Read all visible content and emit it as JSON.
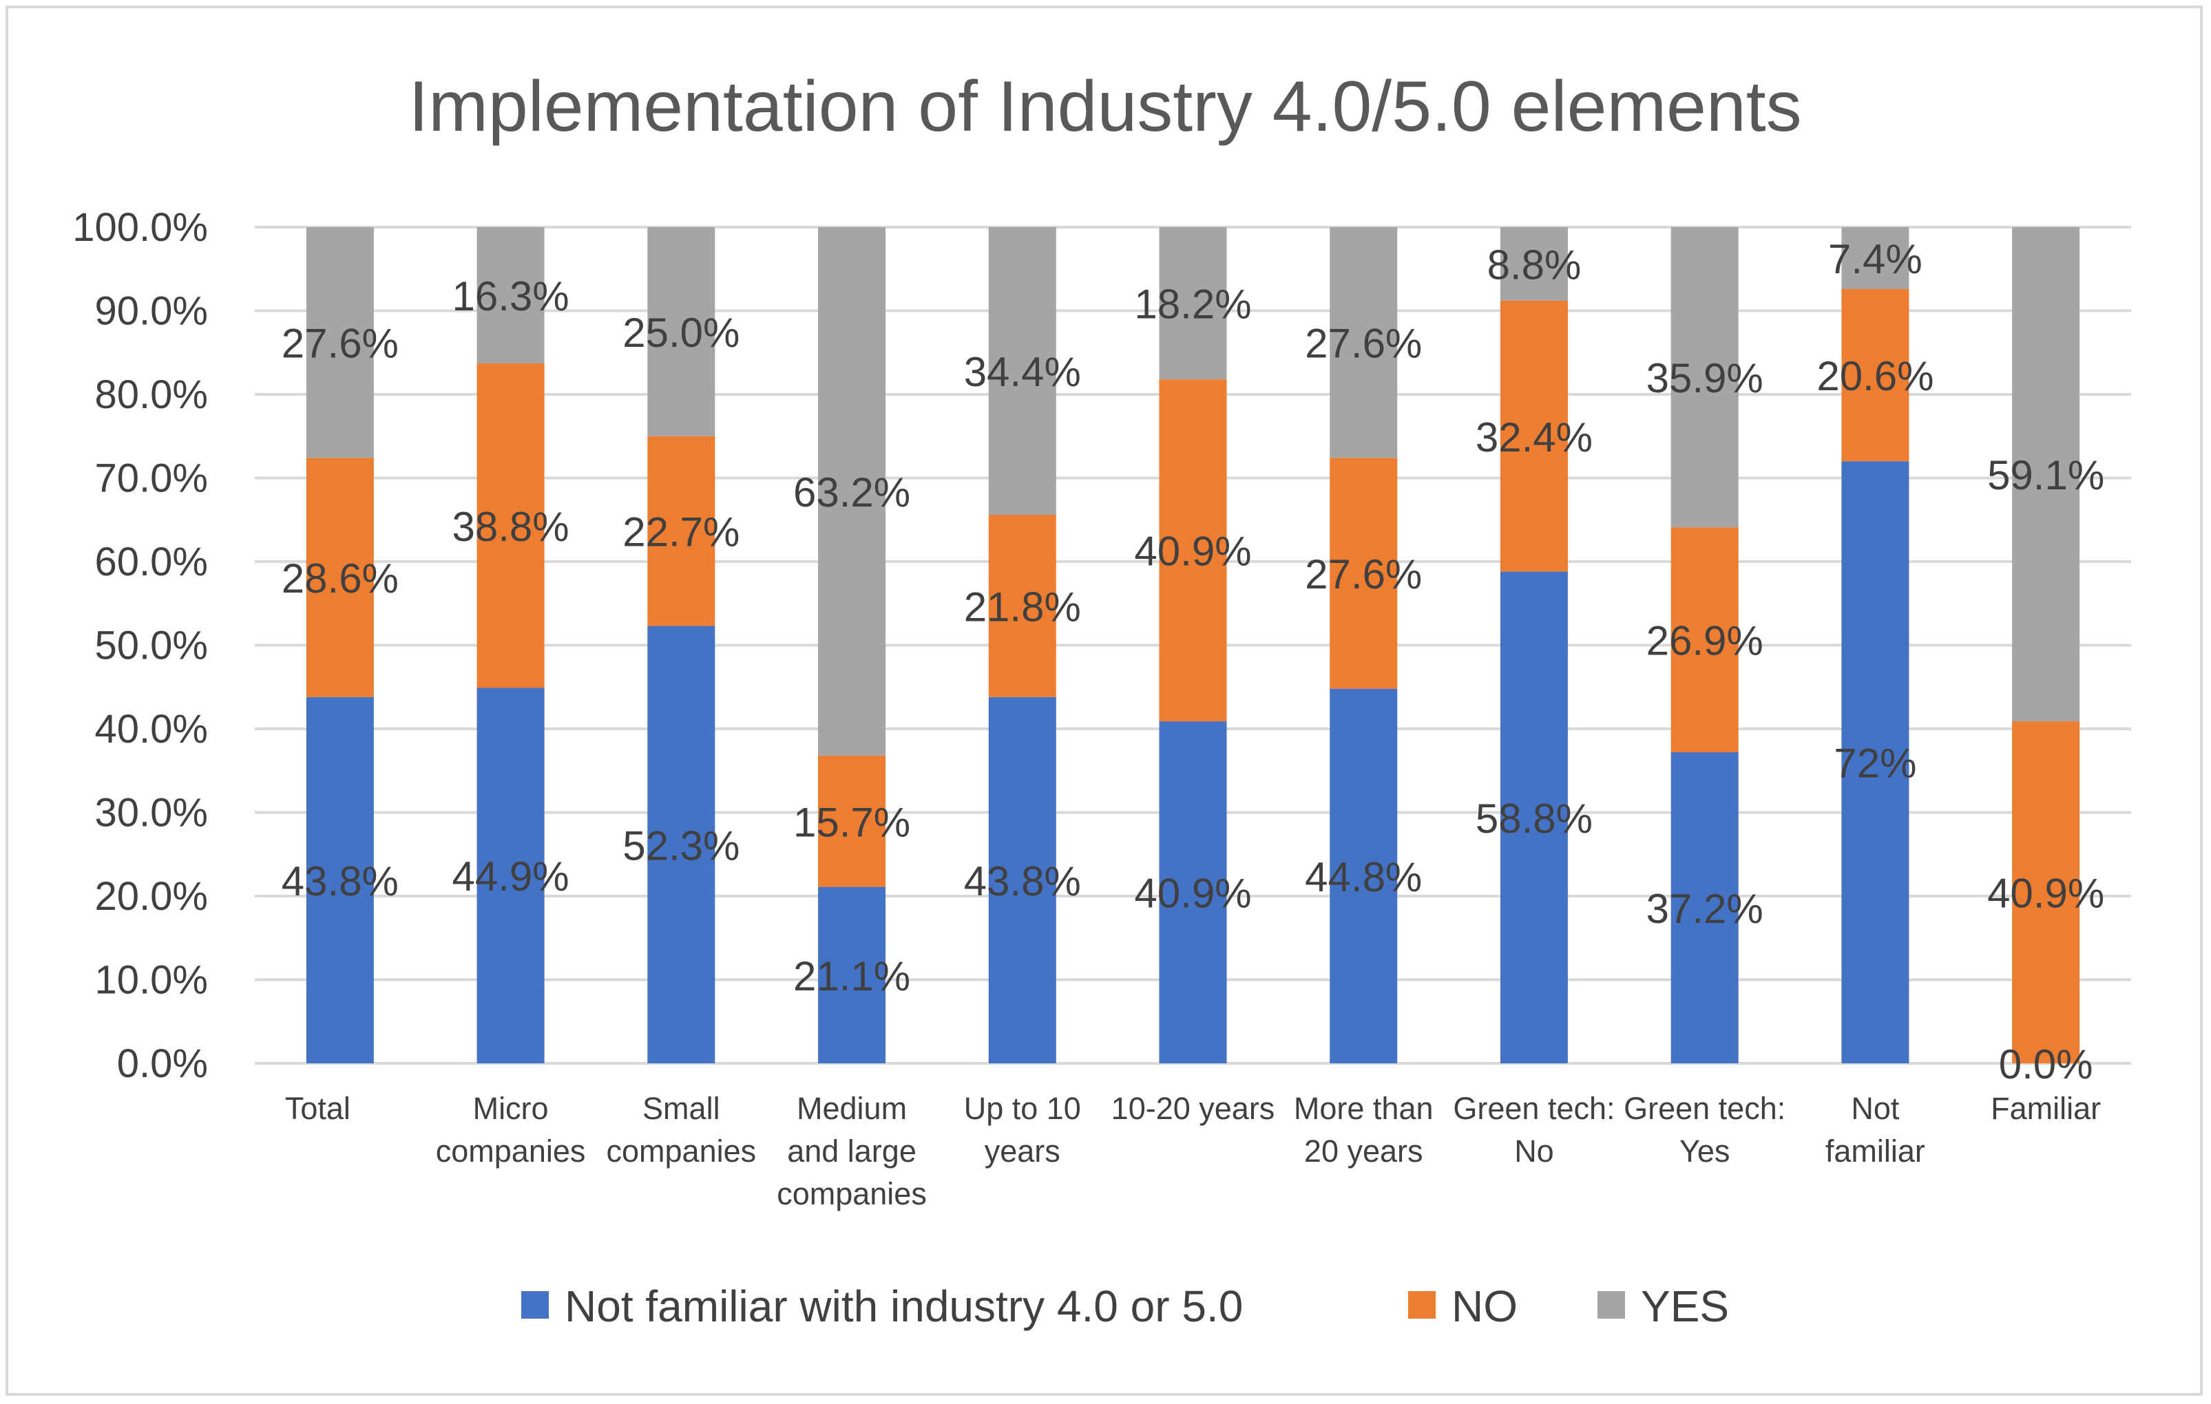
{
  "chart_data": {
    "type": "bar",
    "stacked": true,
    "normalized": true,
    "title": "Implementation of Industry 4.0/5.0 elements",
    "xlabel": "",
    "ylabel": "",
    "ylim": [
      0,
      100
    ],
    "yticks": [
      "0.0%",
      "10.0%",
      "20.0%",
      "30.0%",
      "40.0%",
      "50.0%",
      "60.0%",
      "70.0%",
      "80.0%",
      "90.0%",
      "100.0%"
    ],
    "grid": true,
    "legend_position": "bottom",
    "categories": [
      [
        "Total"
      ],
      [
        "Micro",
        "companies"
      ],
      [
        "Small",
        "companies"
      ],
      [
        "Medium",
        "and large",
        "companies"
      ],
      [
        "Up to 10",
        "years"
      ],
      [
        "10-20 years"
      ],
      [
        "More than",
        "20 years"
      ],
      [
        "Green tech:",
        "No"
      ],
      [
        "Green tech:",
        "Yes"
      ],
      [
        "Not",
        "familiar"
      ],
      [
        "Familiar"
      ]
    ],
    "series": [
      {
        "name": "Not familiar with industry 4.0 or 5.0",
        "color": "#4472c4",
        "values": [
          43.8,
          44.9,
          52.3,
          21.1,
          43.8,
          40.9,
          44.8,
          58.8,
          37.2,
          72,
          0
        ],
        "labels": [
          "43.8%",
          "44.9%",
          "52.3%",
          "21.1%",
          "43.8%",
          "40.9%",
          "44.8%",
          "58.8%",
          "37.2%",
          "72%",
          "0.0%"
        ]
      },
      {
        "name": "NO",
        "color": "#ed7d31",
        "values": [
          28.6,
          38.8,
          22.7,
          15.7,
          21.8,
          40.9,
          27.6,
          32.4,
          26.9,
          20.6,
          40.9
        ],
        "labels": [
          "28.6%",
          "38.8%",
          "22.7%",
          "15.7%",
          "21.8%",
          "40.9%",
          "27.6%",
          "32.4%",
          "26.9%",
          "20.6%",
          "40.9%"
        ]
      },
      {
        "name": "YES",
        "color": "#a5a5a5",
        "values": [
          27.6,
          16.3,
          25.0,
          63.2,
          34.4,
          18.2,
          27.6,
          8.8,
          35.9,
          7.4,
          59.1
        ],
        "labels": [
          "27.6%",
          "16.3%",
          "25.0%",
          "63.2%",
          "34.4%",
          "18.2%",
          "27.6%",
          "8.8%",
          "35.9%",
          "7.4%",
          "59.1%"
        ]
      }
    ]
  }
}
